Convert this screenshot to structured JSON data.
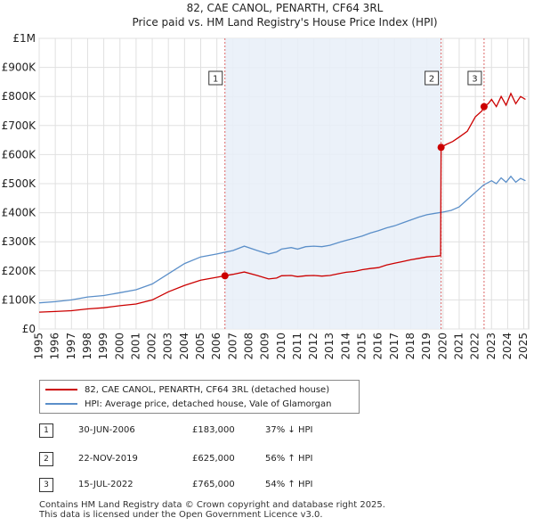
{
  "chart_data": {
    "type": "line",
    "title": "82, CAE CANOL, PENARTH, CF64 3RL",
    "subtitle": "Price paid vs. HM Land Registry's House Price Index (HPI)",
    "xlim": [
      1995,
      2025.3
    ],
    "ylim": [
      0,
      1000000
    ],
    "x_ticks": [
      1995,
      1996,
      1997,
      1998,
      1999,
      2000,
      2001,
      2002,
      2003,
      2004,
      2005,
      2006,
      2007,
      2008,
      2009,
      2010,
      2011,
      2012,
      2013,
      2014,
      2015,
      2016,
      2017,
      2018,
      2019,
      2020,
      2021,
      2022,
      2023,
      2024,
      2025
    ],
    "x_tick_labels": [
      "1995",
      "1996",
      "1997",
      "1998",
      "1999",
      "2000",
      "2001",
      "2002",
      "2003",
      "2004",
      "2005",
      "2006",
      "2007",
      "2008",
      "2009",
      "2010",
      "2011",
      "2012",
      "2013",
      "2014",
      "2015",
      "2016",
      "2017",
      "2018",
      "2019",
      "2020",
      "2021",
      "2022",
      "2023",
      "2024",
      "2025"
    ],
    "y_ticks": [
      0,
      100000,
      200000,
      300000,
      400000,
      500000,
      600000,
      700000,
      800000,
      900000,
      1000000
    ],
    "y_tick_labels": [
      "£0",
      "£100K",
      "£200K",
      "£300K",
      "£400K",
      "£500K",
      "£600K",
      "£700K",
      "£800K",
      "£900K",
      "£1M"
    ],
    "shaded_region": [
      2006.5,
      2019.9
    ],
    "series": [
      {
        "name": "82, CAE CANOL, PENARTH, CF64 3RL (detached house)",
        "color": "#cc0000",
        "points": [
          [
            1995,
            58000
          ],
          [
            1996,
            60000
          ],
          [
            1997,
            63000
          ],
          [
            1998,
            69000
          ],
          [
            1999,
            73000
          ],
          [
            2000,
            80000
          ],
          [
            2001,
            86000
          ],
          [
            2002,
            100000
          ],
          [
            2003,
            128000
          ],
          [
            2004,
            150000
          ],
          [
            2005,
            168000
          ],
          [
            2006,
            178000
          ],
          [
            2006.5,
            183000
          ],
          [
            2007,
            188000
          ],
          [
            2007.7,
            196000
          ],
          [
            2008.5,
            184000
          ],
          [
            2009.2,
            172000
          ],
          [
            2009.7,
            175000
          ],
          [
            2010,
            183000
          ],
          [
            2010.6,
            184000
          ],
          [
            2011,
            180000
          ],
          [
            2011.5,
            183000
          ],
          [
            2012,
            184000
          ],
          [
            2012.5,
            182000
          ],
          [
            2013,
            184000
          ],
          [
            2013.5,
            190000
          ],
          [
            2014,
            195000
          ],
          [
            2014.5,
            198000
          ],
          [
            2015,
            204000
          ],
          [
            2015.5,
            208000
          ],
          [
            2016,
            211000
          ],
          [
            2016.5,
            220000
          ],
          [
            2017,
            226000
          ],
          [
            2017.5,
            232000
          ],
          [
            2018,
            238000
          ],
          [
            2018.5,
            243000
          ],
          [
            2019,
            248000
          ],
          [
            2019.5,
            250000
          ],
          [
            2019.85,
            252000
          ],
          [
            2019.88,
            625000
          ],
          [
            2020.2,
            635000
          ],
          [
            2020.6,
            645000
          ],
          [
            2021,
            660000
          ],
          [
            2021.5,
            680000
          ],
          [
            2022,
            730000
          ],
          [
            2022.4,
            750000
          ],
          [
            2022.54,
            765000
          ],
          [
            2022.8,
            775000
          ],
          [
            2023,
            790000
          ],
          [
            2023.3,
            765000
          ],
          [
            2023.6,
            800000
          ],
          [
            2023.9,
            770000
          ],
          [
            2024.2,
            810000
          ],
          [
            2024.5,
            775000
          ],
          [
            2024.8,
            800000
          ],
          [
            2025.1,
            790000
          ]
        ]
      },
      {
        "name": "HPI: Average price, detached house, Vale of Glamorgan",
        "color": "#5b8fc9",
        "points": [
          [
            1995,
            90000
          ],
          [
            1996,
            94000
          ],
          [
            1997,
            100000
          ],
          [
            1998,
            110000
          ],
          [
            1999,
            115000
          ],
          [
            2000,
            125000
          ],
          [
            2001,
            135000
          ],
          [
            2002,
            155000
          ],
          [
            2003,
            190000
          ],
          [
            2004,
            225000
          ],
          [
            2005,
            248000
          ],
          [
            2006,
            258000
          ],
          [
            2007,
            270000
          ],
          [
            2007.7,
            285000
          ],
          [
            2008.5,
            270000
          ],
          [
            2009.2,
            258000
          ],
          [
            2009.7,
            265000
          ],
          [
            2010,
            275000
          ],
          [
            2010.6,
            280000
          ],
          [
            2011,
            275000
          ],
          [
            2011.5,
            283000
          ],
          [
            2012,
            285000
          ],
          [
            2012.5,
            283000
          ],
          [
            2013,
            288000
          ],
          [
            2013.5,
            297000
          ],
          [
            2014,
            305000
          ],
          [
            2014.5,
            312000
          ],
          [
            2015,
            320000
          ],
          [
            2015.5,
            330000
          ],
          [
            2016,
            338000
          ],
          [
            2016.5,
            348000
          ],
          [
            2017,
            355000
          ],
          [
            2017.5,
            365000
          ],
          [
            2018,
            375000
          ],
          [
            2018.5,
            385000
          ],
          [
            2019,
            393000
          ],
          [
            2019.5,
            398000
          ],
          [
            2020,
            402000
          ],
          [
            2020.5,
            408000
          ],
          [
            2021,
            420000
          ],
          [
            2021.5,
            445000
          ],
          [
            2022,
            470000
          ],
          [
            2022.5,
            495000
          ],
          [
            2023,
            510000
          ],
          [
            2023.3,
            500000
          ],
          [
            2023.6,
            520000
          ],
          [
            2023.9,
            505000
          ],
          [
            2024.2,
            525000
          ],
          [
            2024.5,
            505000
          ],
          [
            2024.8,
            518000
          ],
          [
            2025.1,
            510000
          ]
        ]
      }
    ],
    "markers": [
      {
        "label": "1",
        "x": 2006.5,
        "value": 183000
      },
      {
        "label": "2",
        "x": 2019.88,
        "value": 625000
      },
      {
        "label": "3",
        "x": 2022.54,
        "value": 765000
      }
    ]
  },
  "legend": [
    {
      "label": "82, CAE CANOL, PENARTH, CF64 3RL (detached house)",
      "color": "#cc0000"
    },
    {
      "label": "HPI: Average price, detached house, Vale of Glamorgan",
      "color": "#5b8fc9"
    }
  ],
  "transactions": [
    {
      "num": "1",
      "date": "30-JUN-2006",
      "price": "£183,000",
      "hpi": "37% ↓ HPI"
    },
    {
      "num": "2",
      "date": "22-NOV-2019",
      "price": "£625,000",
      "hpi": "56% ↑ HPI"
    },
    {
      "num": "3",
      "date": "15-JUL-2022",
      "price": "£765,000",
      "hpi": "54% ↑ HPI"
    }
  ],
  "footer": {
    "line1": "Contains HM Land Registry data © Crown copyright and database right 2025.",
    "line2": "This data is licensed under the Open Government Licence v3.0."
  }
}
